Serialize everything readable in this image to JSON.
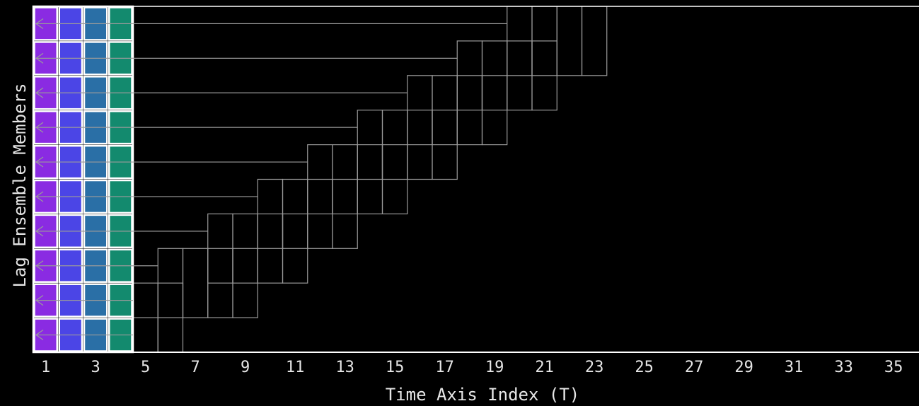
{
  "diagram": {
    "x_axis_label": "Time Axis Index (T)",
    "y_axis_label": "Lag Ensemble Members",
    "x_tick_labels": [
      "1",
      "3",
      "5",
      "7",
      "9",
      "11",
      "13",
      "15",
      "17",
      "19",
      "21",
      "23",
      "25",
      "27",
      "29",
      "31",
      "33",
      "35"
    ],
    "rows": 10,
    "colored_columns": 4,
    "member_start_columns": [
      20,
      18,
      16,
      14,
      12,
      10,
      8,
      6,
      5,
      5
    ],
    "member_window_columns": [
      4,
      4,
      4,
      4,
      4,
      4,
      4,
      4,
      2,
      1
    ],
    "colors": {
      "col1": "#8a2be2",
      "col2": "#4b45e6",
      "col3": "#2a6fa6",
      "col4": "#138a6e",
      "grid_line": "#9a9a9a",
      "axis": "#ffffff",
      "background": "#000000"
    }
  }
}
